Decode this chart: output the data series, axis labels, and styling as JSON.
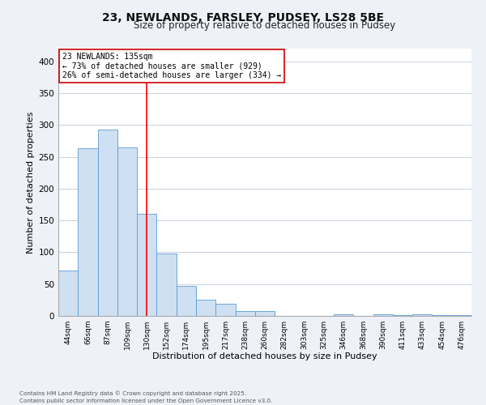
{
  "title": "23, NEWLANDS, FARSLEY, PUDSEY, LS28 5BE",
  "subtitle": "Size of property relative to detached houses in Pudsey",
  "xlabel": "Distribution of detached houses by size in Pudsey",
  "ylabel": "Number of detached properties",
  "bar_labels": [
    "44sqm",
    "66sqm",
    "87sqm",
    "109sqm",
    "130sqm",
    "152sqm",
    "174sqm",
    "195sqm",
    "217sqm",
    "238sqm",
    "260sqm",
    "282sqm",
    "303sqm",
    "325sqm",
    "346sqm",
    "368sqm",
    "390sqm",
    "411sqm",
    "433sqm",
    "454sqm",
    "476sqm"
  ],
  "bar_values": [
    71,
    264,
    293,
    265,
    160,
    98,
    47,
    26,
    19,
    8,
    8,
    0,
    0,
    0,
    3,
    0,
    2,
    1,
    2,
    1,
    1
  ],
  "bar_color": "#cfe0f2",
  "bar_edge_color": "#5b9bd5",
  "ylim": [
    0,
    420
  ],
  "yticks": [
    0,
    50,
    100,
    150,
    200,
    250,
    300,
    350,
    400
  ],
  "vline_x": 4.5,
  "vline_color": "red",
  "annotation_title": "23 NEWLANDS: 135sqm",
  "annotation_line1": "← 73% of detached houses are smaller (929)",
  "annotation_line2": "26% of semi-detached houses are larger (334) →",
  "footnote1": "Contains HM Land Registry data © Crown copyright and database right 2025.",
  "footnote2": "Contains public sector information licensed under the Open Government Licence v3.0.",
  "bg_color": "#eef2f8",
  "plot_bg_color": "#ffffff",
  "grid_color": "#c8d0de"
}
